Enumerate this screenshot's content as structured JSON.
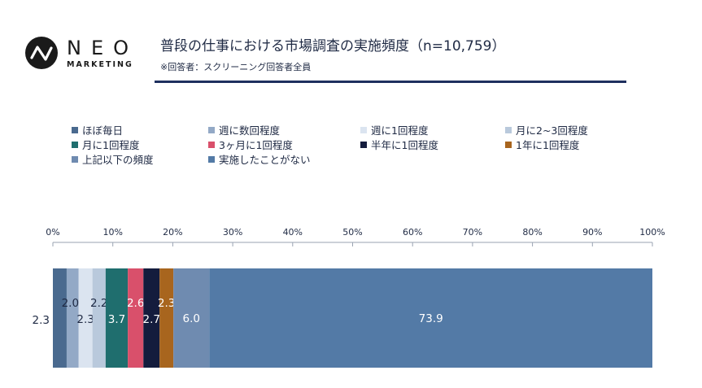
{
  "logo": {
    "name": "NEO",
    "sub": "MARKETING"
  },
  "title": "普段の仕事における市場調査の実施頻度（n=10,759）",
  "subtitle": "※回答者：スクリーニング回答者全員",
  "chart_data": {
    "type": "bar",
    "orientation": "horizontal-stacked-100",
    "title": "普段の仕事における市場調査の実施頻度（n=10,759）",
    "xlim": [
      0,
      100
    ],
    "ticks": [
      "0%",
      "10%",
      "20%",
      "30%",
      "40%",
      "50%",
      "60%",
      "70%",
      "80%",
      "90%",
      "100%"
    ],
    "legend_position": "top",
    "series": [
      {
        "name": "ほぼ毎日",
        "value": 2.3,
        "label": "2.3",
        "color": "#4a6a8f",
        "labelColor": "#1f2a44"
      },
      {
        "name": "週に数回程度",
        "value": 2.0,
        "label": "2.0",
        "color": "#93a9c6",
        "labelColor": "#1f2a44"
      },
      {
        "name": "週に1回程度",
        "value": 2.3,
        "label": "2.3",
        "color": "#dbe4f0",
        "labelColor": "#1f2a44"
      },
      {
        "name": "月に2~3回程度",
        "value": 2.2,
        "label": "2.2",
        "color": "#b9c9dc",
        "labelColor": "#1f2a44"
      },
      {
        "name": "月に1回程度",
        "value": 3.7,
        "label": "3.7",
        "color": "#1f6e6e",
        "labelColor": "#ffffff"
      },
      {
        "name": "3ヶ月に1回程度",
        "value": 2.6,
        "label": "2.6",
        "color": "#d9506b",
        "labelColor": "#ffffff"
      },
      {
        "name": "半年に1回程度",
        "value": 2.7,
        "label": "2.7",
        "color": "#141c3d",
        "labelColor": "#ffffff"
      },
      {
        "name": "1年に1回程度",
        "value": 2.3,
        "label": "2.3",
        "color": "#a8651e",
        "labelColor": "#ffffff"
      },
      {
        "name": "上記以下の頻度",
        "value": 6.0,
        "label": "6.0",
        "color": "#6f8bb0",
        "labelColor": "#ffffff"
      },
      {
        "name": "実施したことがない",
        "value": 73.9,
        "label": "73.9",
        "color": "#537aa6",
        "labelColor": "#ffffff"
      }
    ]
  }
}
